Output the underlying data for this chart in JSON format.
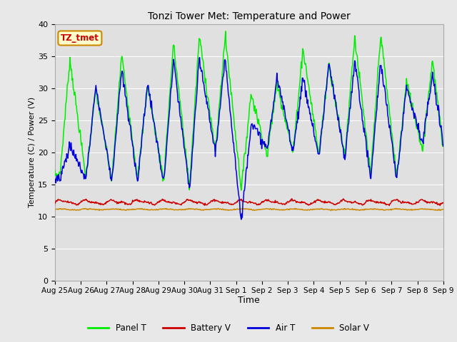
{
  "title": "Tonzi Tower Met: Temperature and Power",
  "xlabel": "Time",
  "ylabel": "Temperature (C) / Power (V)",
  "ylim": [
    0,
    40
  ],
  "yticks": [
    0,
    5,
    10,
    15,
    20,
    25,
    30,
    35,
    40
  ],
  "fig_bg_color": "#e8e8e8",
  "plot_bg_color": "#e0e0e0",
  "grid_color": "#ffffff",
  "annotation_text": "TZ_tmet",
  "annotation_fg": "#cc0000",
  "annotation_bg": "#ffffcc",
  "annotation_edge": "#cc8800",
  "colors": [
    "#00ee00",
    "#cc0000",
    "#0000dd",
    "#cc8800"
  ],
  "legend_labels": [
    "Panel T",
    "Battery V",
    "Air T",
    "Solar V"
  ],
  "date_labels": [
    "Aug 25",
    "Aug 26",
    "Aug 27",
    "Aug 28",
    "Aug 29",
    "Aug 30",
    "Aug 31",
    "Sep 1",
    "Sep 2",
    "Sep 3",
    "Sep 4",
    "Sep 5",
    "Sep 6",
    "Sep 7",
    "Sep 8",
    "Sep 9"
  ],
  "panel_t_peaks": [
    34.5,
    16.5,
    29.8,
    16.0,
    35.2,
    15.5,
    30.5,
    15.8,
    37.0,
    15.5,
    38.2,
    14.5,
    38.2,
    20.0,
    29.2,
    14.2,
    30.8,
    19.4,
    36.2,
    19.8,
    33.8,
    19.7,
    38.0,
    19.5,
    38.5,
    16.3,
    31.0,
    16.2,
    34.5,
    20.3
  ],
  "air_t_peaks": [
    21.0,
    16.0,
    30.3,
    15.8,
    32.8,
    15.5,
    30.9,
    15.5,
    34.3,
    15.0,
    34.5,
    14.0,
    34.5,
    20.0,
    24.7,
    9.2,
    31.6,
    20.4,
    31.5,
    20.2,
    33.8,
    19.2,
    34.3,
    18.8,
    34.2,
    15.8,
    30.4,
    15.8,
    32.0,
    21.3
  ],
  "n_days": 15,
  "seed": 7
}
